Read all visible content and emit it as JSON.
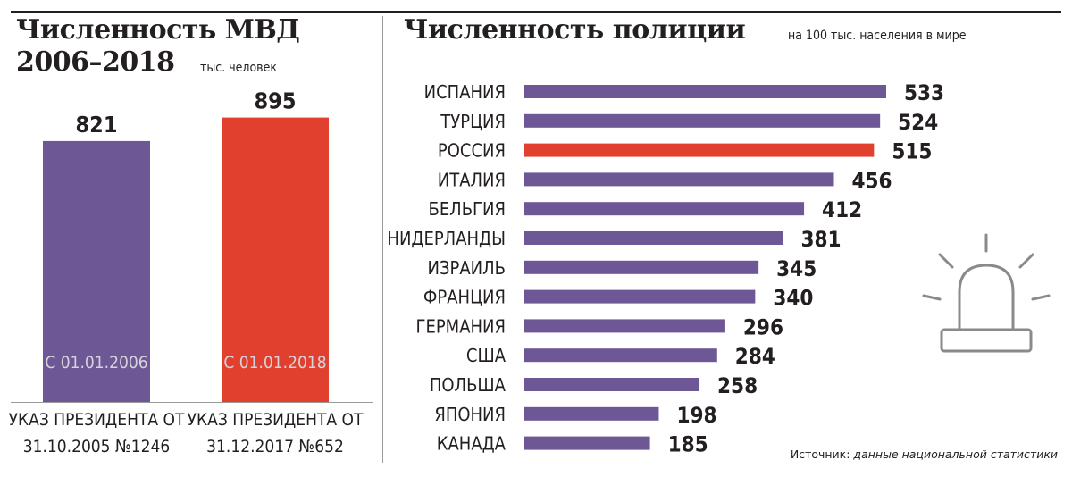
{
  "left_panel": {
    "title_line1": "Численность МВД",
    "title_line2": "2006–2018",
    "unit": "тыс. человек"
  },
  "right_panel": {
    "title": "Численность полиции",
    "subtitle": "на 100 тыс. населения в мире"
  },
  "source": {
    "label": "Источник:",
    "text": "данные национальной статистики"
  },
  "icons": [
    "siren-icon"
  ],
  "colors": {
    "purple": "#6e5795",
    "red": "#e2402f",
    "text": "#231f20"
  },
  "chart_data": [
    {
      "type": "bar",
      "title": "Численность МВД 2006–2018",
      "unit": "тыс. человек",
      "ylim": [
        0,
        1130
      ],
      "bars": [
        {
          "value": 821,
          "label": "С 01.01.2006",
          "caption_line1": "УКАЗ ПРЕЗИДЕНТА ОТ",
          "caption_line2": "31.10.2005 №1246",
          "color": "#6e5795"
        },
        {
          "value": 895,
          "label": "С 01.01.2018",
          "caption_line1": "УКАЗ ПРЕЗИДЕНТА ОТ",
          "caption_line2": "31.12.2017 №652",
          "color": "#e2402f"
        }
      ]
    },
    {
      "type": "bar",
      "orientation": "horizontal",
      "title": "Численность полиции",
      "subtitle": "на 100 тыс. населения в мире",
      "xlim": [
        0,
        533
      ],
      "categories": [
        "ИСПАНИЯ",
        "ТУРЦИЯ",
        "РОССИЯ",
        "ИТАЛИЯ",
        "БЕЛЬГИЯ",
        "НИДЕРЛАНДЫ",
        "ИЗРАИЛЬ",
        "ФРАНЦИЯ",
        "ГЕРМАНИЯ",
        "США",
        "ПОЛЬША",
        "ЯПОНИЯ",
        "КАНАДА"
      ],
      "values": [
        533,
        524,
        515,
        456,
        412,
        381,
        345,
        340,
        296,
        284,
        258,
        198,
        185
      ],
      "highlight": "РОССИЯ",
      "bar_color": "#6e5795",
      "highlight_color": "#e2402f"
    }
  ]
}
